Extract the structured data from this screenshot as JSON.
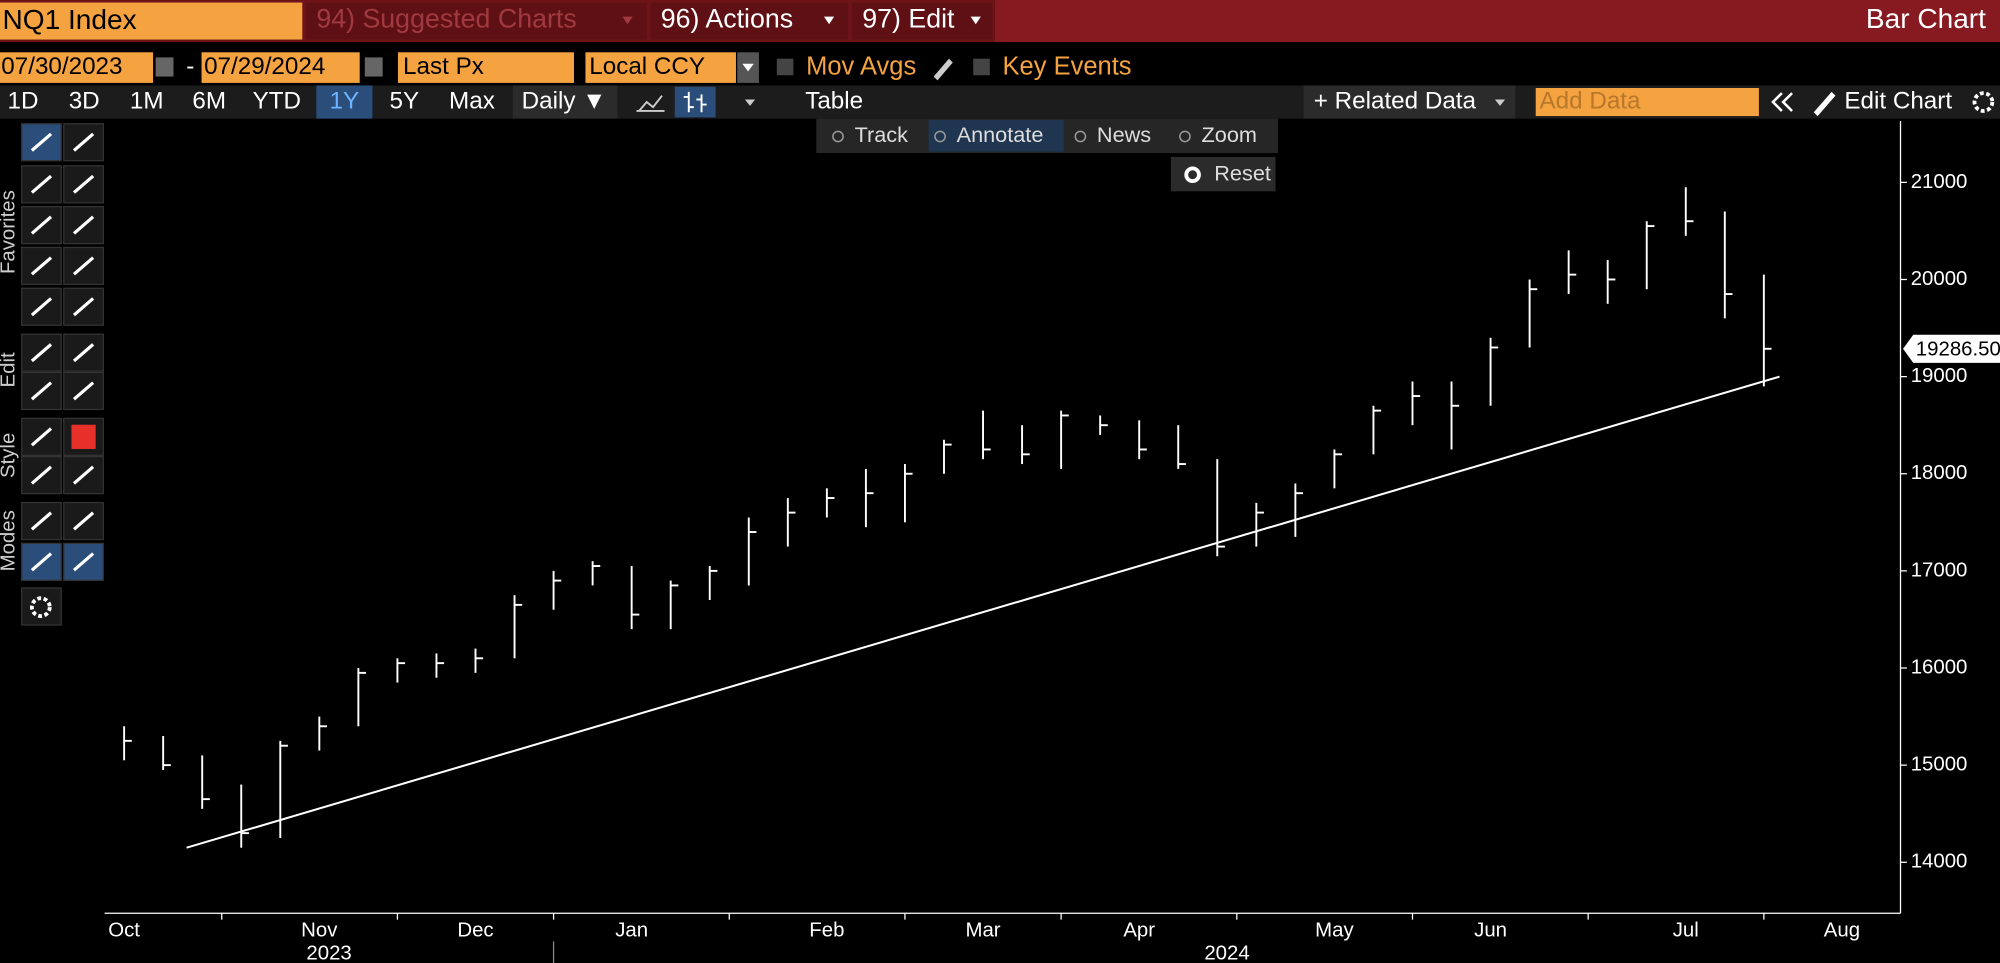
{
  "ui": {
    "ticker": "NQ1 Index",
    "menus": [
      "94) Suggested Charts",
      "96) Actions",
      "97) Edit"
    ],
    "chart_kind": "Bar Chart",
    "start_date": "07/30/2023",
    "range_sep": "-",
    "end_date": "07/29/2024",
    "field": "Last Px",
    "currency": "Local CCY",
    "mov_avgs": "Mov Avgs",
    "key_events": "Key Events",
    "periods": [
      "1D",
      "3D",
      "1M",
      "6M",
      "YTD",
      "1Y",
      "5Y",
      "Max"
    ],
    "selected_period": "1Y",
    "frequency": "Daily ▼",
    "table": "Table",
    "related_data": "+ Related Data",
    "add_data": "Add Data",
    "edit_chart": "Edit Chart",
    "tools": [
      "Track",
      "Annotate",
      "News",
      "Zoom"
    ],
    "selected_tool": "Annotate",
    "reset": "Reset",
    "side_tabs": [
      "Favorites",
      "Edit",
      "Style",
      "Modes"
    ]
  },
  "chart_data": {
    "type": "ohlc",
    "color": "#ffffff",
    "categories": [
      "Oct",
      null,
      null,
      null,
      null,
      "Nov",
      null,
      null,
      null,
      "Dec",
      null,
      null,
      null,
      "Jan",
      null,
      null,
      null,
      null,
      "Feb",
      null,
      null,
      null,
      "Mar",
      null,
      null,
      null,
      "Apr",
      null,
      null,
      null,
      null,
      "May",
      null,
      null,
      null,
      "Jun",
      null,
      null,
      null,
      null,
      "Jul",
      null,
      null,
      null,
      "Aug",
      null
    ],
    "high": [
      15400,
      15300,
      15100,
      14800,
      15250,
      15500,
      16000,
      16100,
      16150,
      16200,
      16750,
      17000,
      17100,
      17050,
      16900,
      17050,
      17550,
      17750,
      17850,
      18050,
      18100,
      18350,
      18650,
      18500,
      18650,
      18600,
      18550,
      18500,
      18150,
      17700,
      17900,
      18250,
      18700,
      18950,
      18950,
      19400,
      20000,
      20300,
      20200,
      20600,
      20950,
      20700,
      20050,
      null,
      null,
      null
    ],
    "low": [
      15050,
      14950,
      14550,
      14150,
      14250,
      15150,
      15400,
      15850,
      15900,
      15950,
      16100,
      16600,
      16850,
      16400,
      16400,
      16700,
      16850,
      17250,
      17550,
      17450,
      17500,
      18000,
      18150,
      18100,
      18050,
      18400,
      18150,
      18050,
      17150,
      17250,
      17350,
      17850,
      18200,
      18500,
      18250,
      18700,
      19300,
      19850,
      19750,
      19900,
      20450,
      19600,
      18900,
      null,
      null,
      null
    ],
    "close": [
      15250,
      15000,
      14650,
      14300,
      15200,
      15400,
      15950,
      16050,
      16050,
      16100,
      16650,
      16900,
      17050,
      16550,
      16850,
      17000,
      17400,
      17600,
      17750,
      17800,
      18000,
      18300,
      18250,
      18200,
      18600,
      18500,
      18250,
      18100,
      17250,
      17600,
      17800,
      18200,
      18650,
      18800,
      18700,
      19300,
      19900,
      20050,
      20000,
      20550,
      20600,
      19850,
      19286.5,
      null,
      null,
      null
    ],
    "x_group_labels": [
      "2023",
      "2024"
    ],
    "last_value": {
      "value": 19286.5,
      "label": "19286.50"
    },
    "trendline": [
      14150,
      19000
    ],
    "ylim": [
      13475,
      21630
    ],
    "yticks": [
      14000,
      15000,
      16000,
      17000,
      18000,
      19000,
      20000,
      21000
    ]
  }
}
